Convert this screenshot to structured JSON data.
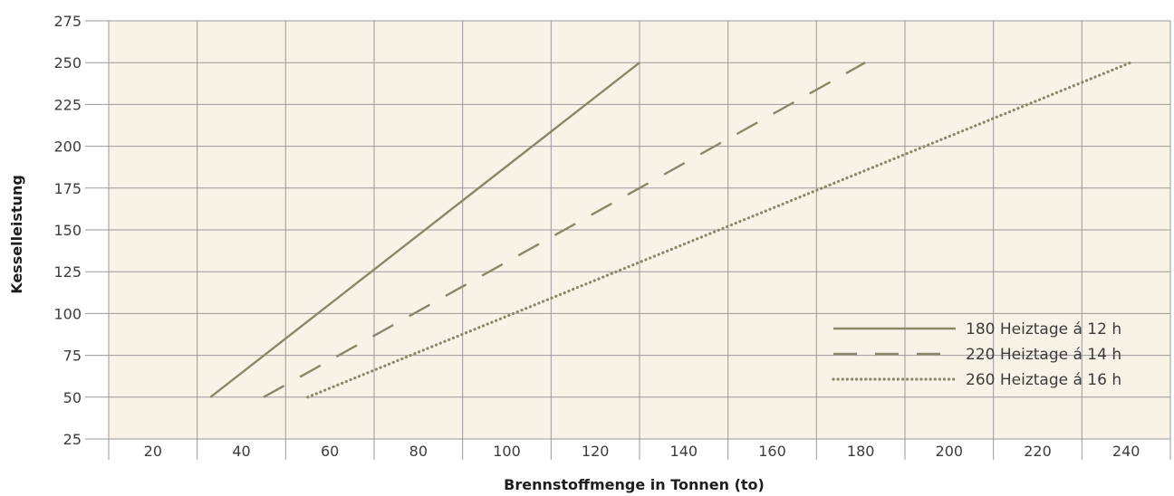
{
  "chart_data": {
    "type": "line",
    "title": "",
    "xlabel": "Brennstoffmenge in Tonnen (to)",
    "ylabel": "Kesselleistung",
    "x_ticks": [
      "20",
      "40",
      "60",
      "80",
      "100",
      "120",
      "140",
      "160",
      "180",
      "200",
      "220",
      "240"
    ],
    "y_ticks": [
      "25",
      "50",
      "75",
      "100",
      "125",
      "150",
      "175",
      "200",
      "225",
      "250",
      "275"
    ],
    "xlim": [
      10,
      250
    ],
    "ylim": [
      25,
      275
    ],
    "grid": true,
    "legend_position": "bottom-right",
    "colors": {
      "plot_background": "#f9f2e6",
      "grid": "#9a9a9a",
      "series": "#8a876a"
    },
    "series": [
      {
        "name": "180 Heiztage á 12 h",
        "style": "solid",
        "x": [
          33,
          130
        ],
        "y": [
          50,
          250
        ]
      },
      {
        "name": "220 Heiztage á 14 h",
        "style": "dashed",
        "x": [
          45,
          181
        ],
        "y": [
          50,
          250
        ]
      },
      {
        "name": "260 Heiztage á 16 h",
        "style": "dotted",
        "x": [
          55,
          241
        ],
        "y": [
          50,
          250
        ]
      }
    ]
  }
}
